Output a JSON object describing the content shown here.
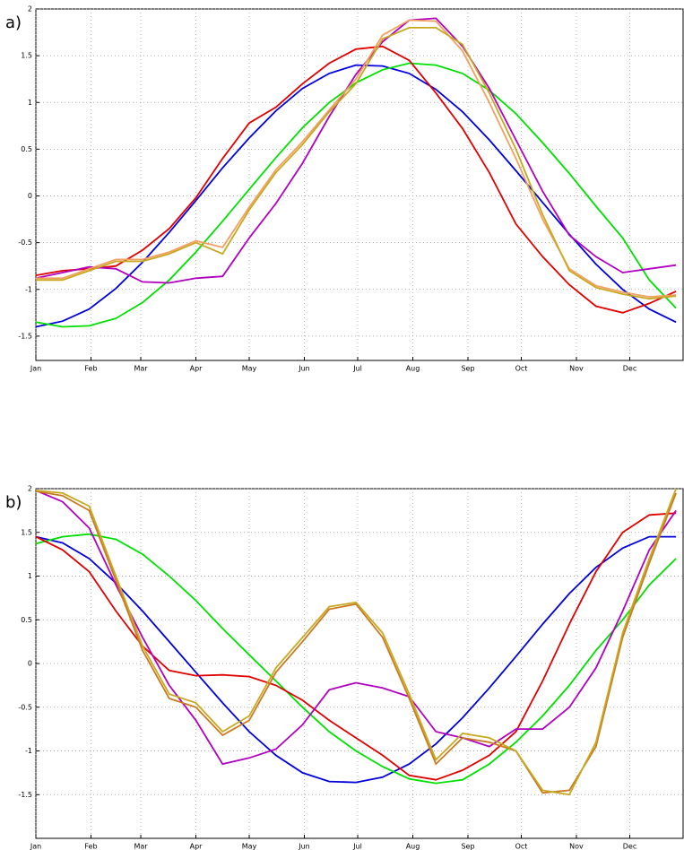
{
  "chart_data": [
    {
      "type": "line",
      "label": "a)",
      "x": [
        1,
        16,
        31,
        46,
        61,
        76,
        91,
        106,
        121,
        136,
        151,
        166,
        181,
        196,
        211,
        226,
        241,
        256,
        271,
        286,
        301,
        316,
        331,
        346,
        361
      ],
      "xlim": [
        1,
        365
      ],
      "xticks": [
        {
          "value": 1,
          "label": "Jan"
        },
        {
          "value": 32,
          "label": "Feb"
        },
        {
          "value": 60,
          "label": "Mar"
        },
        {
          "value": 91,
          "label": "Apr"
        },
        {
          "value": 121,
          "label": "May"
        },
        {
          "value": 152,
          "label": "Jun"
        },
        {
          "value": 182,
          "label": "Jul"
        },
        {
          "value": 213,
          "label": "Aug"
        },
        {
          "value": 244,
          "label": "Sep"
        },
        {
          "value": 274,
          "label": "Oct"
        },
        {
          "value": 305,
          "label": "Nov"
        },
        {
          "value": 335,
          "label": "Dec"
        }
      ],
      "ylim": [
        -1.76,
        2
      ],
      "yticks": [
        2,
        1.5,
        1,
        0.5,
        0,
        -0.5,
        -1,
        -1.5
      ],
      "grid": true,
      "series": [
        {
          "color": "#0000dd",
          "values": [
            -1.4,
            -1.34,
            -1.21,
            -0.99,
            -0.71,
            -0.39,
            -0.05,
            0.3,
            0.62,
            0.91,
            1.15,
            1.31,
            1.4,
            1.39,
            1.31,
            1.14,
            0.9,
            0.6,
            0.27,
            -0.07,
            -0.41,
            -0.73,
            -1.0,
            -1.21,
            -1.35
          ]
        },
        {
          "color": "#00e000",
          "values": [
            -1.35,
            -1.4,
            -1.39,
            -1.31,
            -1.14,
            -0.9,
            -0.6,
            -0.27,
            0.07,
            0.41,
            0.73,
            1.0,
            1.21,
            1.35,
            1.42,
            1.4,
            1.31,
            1.13,
            0.88,
            0.57,
            0.24,
            -0.11,
            -0.45,
            -0.9,
            -1.2
          ]
        },
        {
          "color": "#e00000",
          "values": [
            -0.85,
            -0.8,
            -0.78,
            -0.75,
            -0.58,
            -0.35,
            -0.02,
            0.4,
            0.78,
            0.95,
            1.2,
            1.42,
            1.57,
            1.6,
            1.45,
            1.1,
            0.72,
            0.25,
            -0.3,
            -0.65,
            -0.95,
            -1.18,
            -1.25,
            -1.15,
            -1.02
          ]
        },
        {
          "color": "#b000c0",
          "values": [
            -0.88,
            -0.82,
            -0.76,
            -0.78,
            -0.92,
            -0.93,
            -0.88,
            -0.86,
            -0.45,
            -0.08,
            0.35,
            0.85,
            1.3,
            1.65,
            1.88,
            1.9,
            1.6,
            1.15,
            0.6,
            0.05,
            -0.42,
            -0.65,
            -0.82,
            -0.78,
            -0.74
          ]
        },
        {
          "color": "#f0a060",
          "values": [
            -0.88,
            -0.88,
            -0.78,
            -0.68,
            -0.68,
            -0.6,
            -0.48,
            -0.55,
            -0.12,
            0.28,
            0.58,
            0.92,
            1.25,
            1.72,
            1.88,
            1.87,
            1.55,
            1.0,
            0.4,
            -0.25,
            -0.78,
            -0.96,
            -1.03,
            -1.08,
            -1.06
          ]
        },
        {
          "color": "#c8a820",
          "values": [
            -0.9,
            -0.9,
            -0.8,
            -0.7,
            -0.7,
            -0.62,
            -0.5,
            -0.62,
            -0.15,
            0.25,
            0.55,
            0.9,
            1.2,
            1.68,
            1.8,
            1.8,
            1.62,
            1.1,
            0.5,
            -0.2,
            -0.8,
            -0.98,
            -1.05,
            -1.1,
            -1.07
          ]
        }
      ]
    },
    {
      "type": "line",
      "label": "b)",
      "x": [
        1,
        16,
        31,
        46,
        61,
        76,
        91,
        106,
        121,
        136,
        151,
        166,
        181,
        196,
        211,
        226,
        241,
        256,
        271,
        286,
        301,
        316,
        331,
        346,
        361
      ],
      "xlim": [
        1,
        365
      ],
      "xticks": [
        {
          "value": 1,
          "label": "Jan"
        },
        {
          "value": 32,
          "label": "Feb"
        },
        {
          "value": 60,
          "label": "Mar"
        },
        {
          "value": 91,
          "label": "Apr"
        },
        {
          "value": 121,
          "label": "May"
        },
        {
          "value": 152,
          "label": "Jun"
        },
        {
          "value": 182,
          "label": "Jul"
        },
        {
          "value": 213,
          "label": "Aug"
        },
        {
          "value": 244,
          "label": "Sep"
        },
        {
          "value": 274,
          "label": "Oct"
        },
        {
          "value": 305,
          "label": "Nov"
        },
        {
          "value": 335,
          "label": "Dec"
        }
      ],
      "ylim": [
        -2,
        2
      ],
      "yticks": [
        2,
        1.5,
        1,
        0.5,
        0,
        -0.5,
        -1,
        -1.5
      ],
      "grid": true,
      "series": [
        {
          "color": "#0000dd",
          "values": [
            1.45,
            1.38,
            1.2,
            0.92,
            0.6,
            0.25,
            -0.1,
            -0.45,
            -0.78,
            -1.05,
            -1.25,
            -1.35,
            -1.36,
            -1.3,
            -1.15,
            -0.92,
            -0.62,
            -0.28,
            0.08,
            0.45,
            0.8,
            1.1,
            1.32,
            1.45,
            1.45
          ]
        },
        {
          "color": "#00e000",
          "values": [
            1.37,
            1.45,
            1.48,
            1.42,
            1.25,
            1.0,
            0.72,
            0.4,
            0.1,
            -0.2,
            -0.5,
            -0.78,
            -1.0,
            -1.18,
            -1.32,
            -1.37,
            -1.33,
            -1.15,
            -0.9,
            -0.6,
            -0.25,
            0.15,
            0.5,
            0.9,
            1.2
          ]
        },
        {
          "color": "#e00000",
          "values": [
            1.45,
            1.3,
            1.05,
            0.6,
            0.2,
            -0.08,
            -0.14,
            -0.13,
            -0.15,
            -0.25,
            -0.42,
            -0.65,
            -0.85,
            -1.05,
            -1.28,
            -1.33,
            -1.22,
            -1.05,
            -0.78,
            -0.2,
            0.45,
            1.05,
            1.5,
            1.7,
            1.72
          ]
        },
        {
          "color": "#b000c0",
          "values": [
            1.98,
            1.85,
            1.55,
            0.9,
            0.3,
            -0.25,
            -0.65,
            -1.15,
            -1.08,
            -0.98,
            -0.7,
            -0.3,
            -0.22,
            -0.28,
            -0.38,
            -0.78,
            -0.85,
            -0.95,
            -0.75,
            -0.75,
            -0.5,
            -0.05,
            0.6,
            1.3,
            1.75
          ]
        },
        {
          "color": "#c87a20",
          "values": [
            1.97,
            1.92,
            1.75,
            0.95,
            0.15,
            -0.4,
            -0.5,
            -0.82,
            -0.65,
            -0.1,
            0.25,
            0.62,
            0.68,
            0.3,
            -0.4,
            -1.15,
            -0.85,
            -0.9,
            -1.0,
            -1.48,
            -1.45,
            -0.95,
            0.3,
            1.15,
            1.95
          ]
        },
        {
          "color": "#c8a820",
          "values": [
            1.98,
            1.95,
            1.8,
            1.0,
            0.2,
            -0.35,
            -0.45,
            -0.78,
            -0.6,
            -0.05,
            0.3,
            0.65,
            0.7,
            0.35,
            -0.35,
            -1.1,
            -0.8,
            -0.85,
            -1.0,
            -1.45,
            -1.5,
            -0.9,
            0.35,
            1.2,
            2.0
          ]
        }
      ]
    }
  ]
}
